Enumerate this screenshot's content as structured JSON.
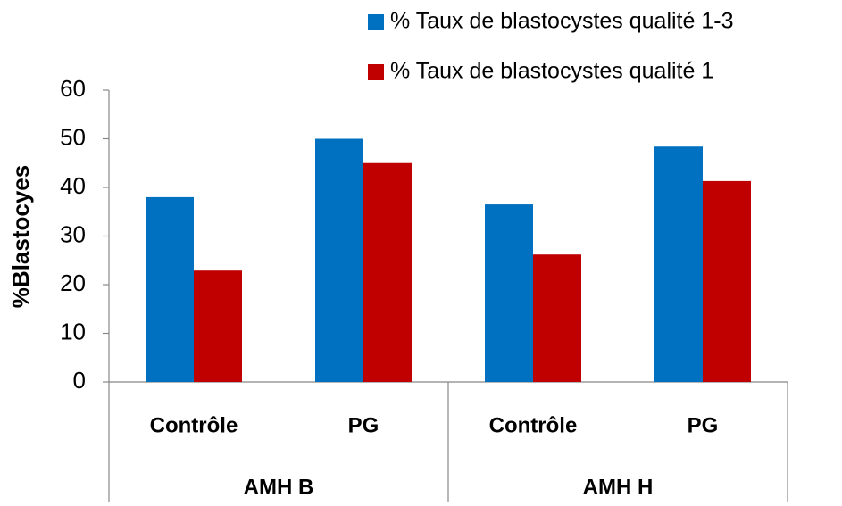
{
  "chart_data": {
    "type": "bar",
    "ylabel": "%Blastocyes",
    "categories": [
      "Contrôle",
      "PG",
      "Contrôle",
      "PG"
    ],
    "groups": [
      "AMH  B",
      "AMH H"
    ],
    "series": [
      {
        "name": "% Taux de blastocystes qualité 1-3",
        "color": "#0070c0",
        "values": [
          38,
          50,
          36.5,
          48.4
        ]
      },
      {
        "name": "% Taux de blastocystes qualité 1",
        "color": "#c00000",
        "values": [
          22.9,
          45,
          26.2,
          41.3
        ]
      }
    ],
    "ylim": [
      0,
      60
    ],
    "yticks": [
      0,
      10,
      20,
      30,
      40,
      50,
      60
    ],
    "grid": false,
    "legend": "top-right"
  }
}
